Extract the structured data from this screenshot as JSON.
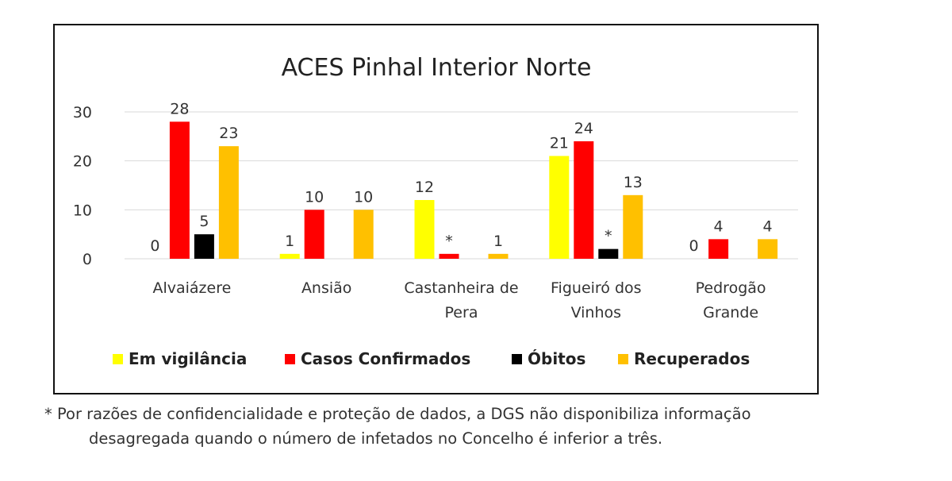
{
  "chart_data": {
    "type": "bar",
    "title": "ACES Pinhal Interior Norte",
    "categories": [
      [
        "Alvaiázere"
      ],
      [
        "Ansião"
      ],
      [
        "Castanheira de",
        "Pera"
      ],
      [
        "Figueiró dos",
        "Vinhos"
      ],
      [
        "Pedrogão",
        "Grande"
      ]
    ],
    "ylim": [
      0,
      30
    ],
    "yticks": [
      0,
      10,
      20,
      30
    ],
    "grid": true,
    "legend_position": "bottom",
    "series": [
      {
        "name": "Em vigilância",
        "color": "#FFFF00",
        "values": [
          0,
          1,
          12,
          21,
          0
        ],
        "labels": [
          "0",
          "1",
          "12",
          "21",
          "0"
        ]
      },
      {
        "name": "Casos Confirmados",
        "color": "#FF0000",
        "values": [
          28,
          10,
          1,
          24,
          4
        ],
        "labels": [
          "28",
          "10",
          "*",
          "24",
          "4"
        ]
      },
      {
        "name": "Óbitos",
        "color": "#000000",
        "values": [
          5,
          0,
          0,
          2,
          0
        ],
        "labels": [
          "5",
          "",
          "",
          "*",
          ""
        ]
      },
      {
        "name": "Recuperados",
        "color": "#FFC000",
        "values": [
          23,
          10,
          1,
          13,
          4
        ],
        "labels": [
          "23",
          "10",
          "1",
          "13",
          "4"
        ]
      }
    ]
  },
  "footnote": {
    "line1": "* Por razões de confidencialidade e proteção de dados, a DGS não disponibiliza informação",
    "line2": "desagregada quando o número de infetados no Concelho é inferior a três."
  }
}
